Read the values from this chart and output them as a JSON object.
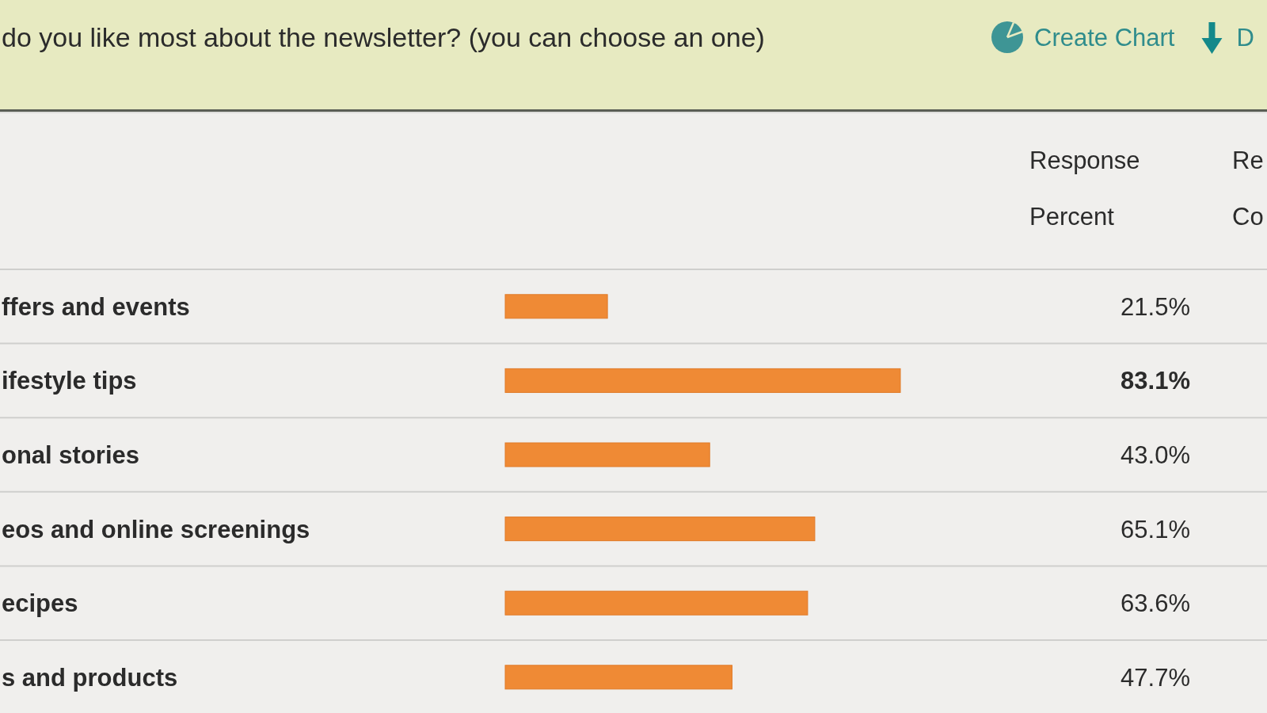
{
  "chart_data": {
    "type": "bar",
    "orientation": "horizontal",
    "title": "do you like most about the newsletter? (you can choose an one)",
    "categories": [
      "ffers and events",
      "ifestyle tips",
      "onal stories",
      "eos and online screenings",
      "ecipes",
      "s and products"
    ],
    "values": [
      21.5,
      83.1,
      43.0,
      65.1,
      63.6,
      47.7
    ],
    "value_labels": [
      "21.5%",
      "83.1%",
      "43.0%",
      "65.1%",
      "63.6%",
      "47.7%"
    ],
    "color": "#ef8a35",
    "annotations": [
      "Response Percent",
      "Re Co",
      "Create Chart",
      "D"
    ]
  }
}
